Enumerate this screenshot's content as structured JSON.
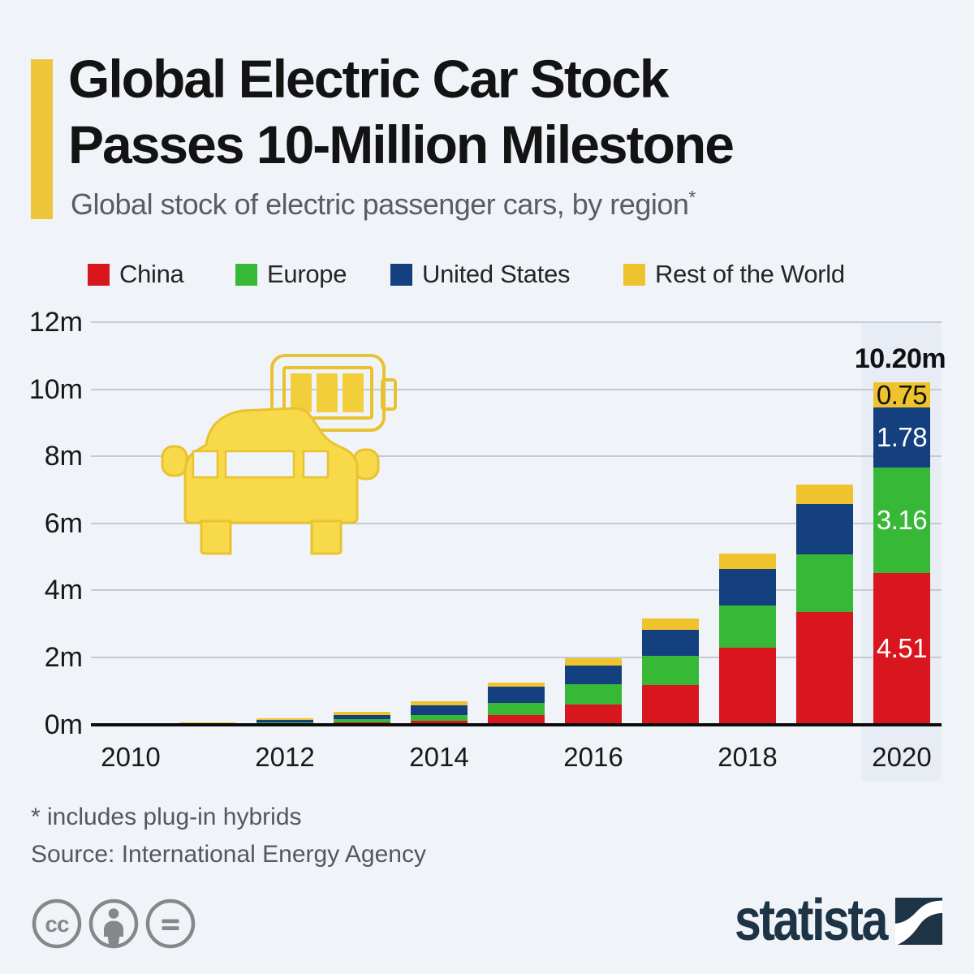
{
  "header": {
    "title_line1": "Global Electric Car Stock",
    "title_line2": "Passes 10-Million Milestone",
    "subtitle": "Global stock of electric passenger cars, by region",
    "subtitle_marker": "*"
  },
  "chart_data": {
    "type": "bar",
    "stacked": true,
    "title": "Global Electric Car Stock Passes 10-Million Milestone",
    "subtitle": "Global stock of electric passenger cars, by region*",
    "unit": "million vehicles",
    "categories": [
      "2010",
      "2011",
      "2012",
      "2013",
      "2014",
      "2015",
      "2016",
      "2017",
      "2018",
      "2019",
      "2020"
    ],
    "series": [
      {
        "name": "China",
        "color": "#d9161e",
        "values": [
          0.0,
          0.01,
          0.02,
          0.05,
          0.11,
          0.27,
          0.6,
          1.18,
          2.28,
          3.35,
          4.51
        ]
      },
      {
        "name": "Europe",
        "color": "#37b837",
        "values": [
          0.01,
          0.02,
          0.05,
          0.1,
          0.18,
          0.38,
          0.6,
          0.87,
          1.26,
          1.73,
          3.16
        ]
      },
      {
        "name": "United States",
        "color": "#14407f",
        "values": [
          0.01,
          0.02,
          0.07,
          0.13,
          0.29,
          0.47,
          0.56,
          0.76,
          1.1,
          1.5,
          1.78
        ]
      },
      {
        "name": "Rest of the World",
        "color": "#eec32d",
        "values": [
          0.01,
          0.02,
          0.04,
          0.1,
          0.11,
          0.12,
          0.21,
          0.34,
          0.46,
          0.58,
          0.75
        ]
      }
    ],
    "ylim": [
      0,
      12
    ],
    "ytick_labels": [
      "12m",
      "10m",
      "8m",
      "6m",
      "4m",
      "2m",
      "0m"
    ],
    "xtick_labels": [
      "2010",
      "2012",
      "2014",
      "2016",
      "2018",
      "2020"
    ],
    "grid": true,
    "legend_position": "top",
    "highlight_category": "2020",
    "annotations": {
      "total_label": {
        "category": "2020",
        "text": "10.20m"
      },
      "segment_labels": [
        {
          "category": "2020",
          "series": "Rest of the World",
          "text": "0.75",
          "text_color": "#111111"
        },
        {
          "category": "2020",
          "series": "United States",
          "text": "1.78",
          "text_color": "#ffffff"
        },
        {
          "category": "2020",
          "series": "Europe",
          "text": "3.16",
          "text_color": "#ffffff"
        },
        {
          "category": "2020",
          "series": "China",
          "text": "4.51",
          "text_color": "#ffffff"
        }
      ]
    }
  },
  "footer": {
    "footnote": "* includes plug-in hybrids",
    "source": "Source: International Energy Agency"
  },
  "branding": {
    "logo_text": "statista",
    "license_icons": [
      "cc-icon",
      "attribution-icon",
      "no-derivatives-icon"
    ]
  },
  "colors": {
    "background": "#f0f4f8",
    "highlight_column": "#e8ecf4",
    "accent_bar": "#edc53a",
    "grid": "#c7cad0",
    "axis": "#0b0b0b",
    "icon_yellow": "#f7d94a",
    "icon_yellow_stroke": "#e9c22f",
    "statista_navy": "#1d3346",
    "license_gray": "#85878a",
    "text_dark": "#131313",
    "text_gray": "#595c60"
  }
}
